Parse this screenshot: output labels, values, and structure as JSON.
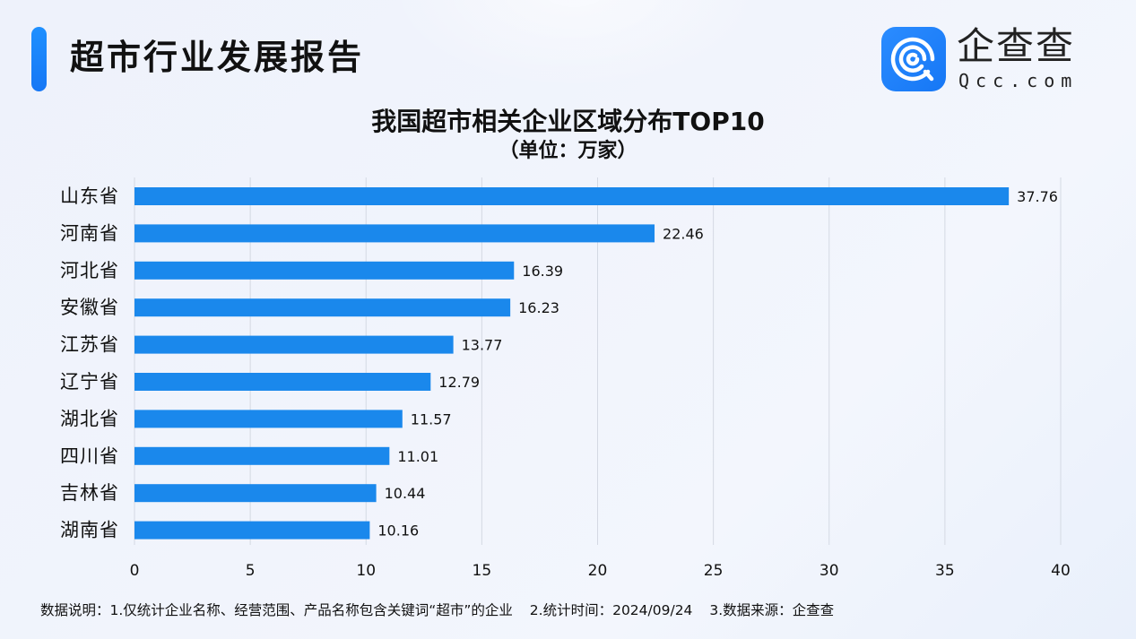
{
  "header": {
    "report_title": "超市行业发展报告",
    "logo": {
      "name_cn": "企查查",
      "name_en": "Qcc.com"
    }
  },
  "colors": {
    "accent": "#1677f5",
    "bar": "#1a88ec",
    "grid": "#d4d9e3",
    "text": "#111111"
  },
  "chart_data": {
    "type": "bar",
    "orientation": "horizontal",
    "title": "我国超市相关企业区域分布TOP10",
    "subtitle": "（单位：万家）",
    "xlabel": "",
    "ylabel": "",
    "xlim": [
      0,
      40
    ],
    "xticks": [
      0,
      5,
      10,
      15,
      20,
      25,
      30,
      35,
      40
    ],
    "xtick_labels": [
      "0",
      "5",
      "10",
      "15",
      "20",
      "25",
      "30",
      "35",
      "40"
    ],
    "grid": true,
    "legend": "none",
    "categories": [
      "山东省",
      "河南省",
      "河北省",
      "安徽省",
      "江苏省",
      "辽宁省",
      "湖北省",
      "四川省",
      "吉林省",
      "湖南省"
    ],
    "values": [
      37.76,
      22.46,
      16.39,
      16.23,
      13.77,
      12.79,
      11.57,
      11.01,
      10.44,
      10.16
    ],
    "value_labels": [
      "37.76",
      "22.46",
      "16.39",
      "16.23",
      "13.77",
      "12.79",
      "11.57",
      "11.01",
      "10.44",
      "10.16"
    ]
  },
  "footnote": {
    "note1": "数据说明：1.仅统计企业名称、经营范围、产品名称包含关键词“超市”的企业",
    "note2": "2.统计时间：2024/09/24",
    "note3": "3.数据来源：企查查"
  }
}
